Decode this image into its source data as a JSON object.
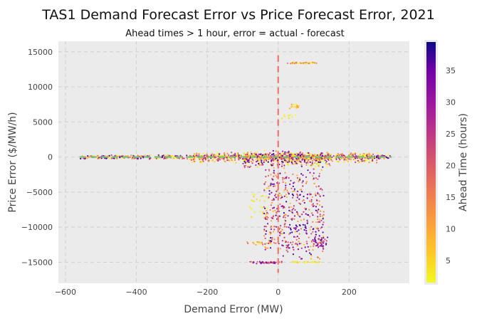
{
  "chart_data": {
    "type": "scatter",
    "title": "TAS1 Demand Forecast Error vs Price Forecast Error, 2021",
    "subtitle": "Ahead times > 1 hour, error = actual - forecast",
    "xlabel": "Demand Error (MW)",
    "ylabel": "Price Error ($/MW/h)",
    "xlim": [
      -620,
      370
    ],
    "ylim": [
      -18000,
      16500
    ],
    "xticks": [
      -600,
      -400,
      -200,
      0,
      200
    ],
    "yticks": [
      15000,
      10000,
      5000,
      0,
      -5000,
      -10000,
      -15000
    ],
    "colorbar": {
      "label": "Ahead Time (hours)",
      "ticks": [
        5,
        10,
        15,
        20,
        25,
        30,
        35
      ],
      "range": [
        1.5,
        39.5
      ],
      "colormap": "plasma"
    },
    "grid": true,
    "reference_lines": [
      {
        "orientation": "vertical",
        "x": 0,
        "color": "#e8807a"
      },
      {
        "orientation": "horizontal",
        "y": 0,
        "color": "#7fc07a",
        "x_range": [
          -560,
          320
        ]
      }
    ],
    "clusters": [
      {
        "x": [
          -560,
          320
        ],
        "y": [
          -300,
          300
        ],
        "ahead": [
          2,
          38
        ],
        "n": 600
      },
      {
        "x": [
          -250,
          280
        ],
        "y": [
          -900,
          700
        ],
        "ahead": [
          2,
          30
        ],
        "n": 450
      },
      {
        "x": [
          -100,
          150
        ],
        "y": [
          -1500,
          1000
        ],
        "ahead": [
          2,
          38
        ],
        "n": 300
      },
      {
        "x": [
          -40,
          130
        ],
        "y": [
          -15100,
          -1000
        ],
        "ahead": [
          10,
          38
        ],
        "n": 480
      },
      {
        "x": [
          -80,
          10
        ],
        "y": [
          -15200,
          -14900
        ],
        "ahead": [
          15,
          35
        ],
        "n": 40
      },
      {
        "x": [
          40,
          120
        ],
        "y": [
          -15100,
          -14900
        ],
        "ahead": [
          3,
          12
        ],
        "n": 25
      },
      {
        "x": [
          20,
          110
        ],
        "y": [
          13300,
          13500
        ],
        "ahead": [
          3,
          20
        ],
        "n": 40
      },
      {
        "x": [
          30,
          60
        ],
        "y": [
          6900,
          7600
        ],
        "ahead": [
          5,
          15
        ],
        "n": 15
      },
      {
        "x": [
          10,
          50
        ],
        "y": [
          5500,
          6500
        ],
        "ahead": [
          3,
          10
        ],
        "n": 10
      },
      {
        "x": [
          -80,
          -30
        ],
        "y": [
          -5000,
          -9000
        ],
        "ahead": [
          3,
          10
        ],
        "n": 25
      },
      {
        "x": [
          -90,
          0
        ],
        "y": [
          -12600,
          -12000
        ],
        "ahead": [
          5,
          20
        ],
        "n": 20
      },
      {
        "x": [
          100,
          140
        ],
        "y": [
          -11000,
          -13000
        ],
        "ahead": [
          20,
          36
        ],
        "n": 30
      }
    ],
    "colors": {
      "background": "#ebebeb",
      "grid": "#d0d0d0"
    }
  }
}
